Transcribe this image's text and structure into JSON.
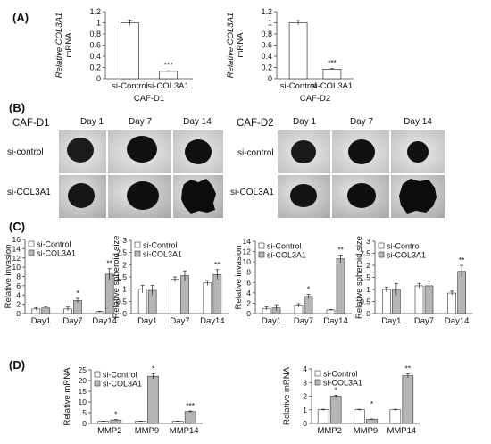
{
  "panels": {
    "A": "(A)",
    "B": "(B)",
    "C": "(C)",
    "D": "(D)"
  },
  "colors": {
    "white_bar": "#ffffff",
    "grey_bar": "#b5b5b5",
    "axis": "#444444",
    "bar_edge": "#333333"
  },
  "spheroid": {
    "left": {
      "title": "CAF-D1",
      "days": [
        "Day 1",
        "Day 7",
        "Day 14"
      ],
      "rows": [
        "si-control",
        "si-COL3A1"
      ]
    },
    "right": {
      "title": "CAF-D2",
      "days": [
        "Day 1",
        "Day 7",
        "Day 14"
      ],
      "rows": [
        "si-control",
        "si-COL3A1"
      ]
    }
  },
  "chart_data": [
    {
      "id": "a1",
      "type": "bar",
      "categories": [
        "si-Control",
        "si-COL3A1"
      ],
      "values": [
        1.0,
        0.13
      ],
      "errors": [
        0.05,
        0.01
      ],
      "ylabel_top": "Relative COL3A1",
      "ylabel_bottom": "mRNA",
      "ylim": [
        0,
        1.2
      ],
      "yticks": [
        0,
        0.2,
        0.4,
        0.6,
        0.8,
        1,
        1.2
      ],
      "xlabel": "CAF-D1",
      "annotations": [
        {
          "category": "si-COL3A1",
          "text": "***"
        }
      ]
    },
    {
      "id": "a2",
      "type": "bar",
      "categories": [
        "si-Control",
        "si-COL3A1"
      ],
      "values": [
        1.0,
        0.17
      ],
      "errors": [
        0.04,
        0.01
      ],
      "ylabel_top": "Relative COL3A1",
      "ylabel_bottom": "mRNA",
      "ylim": [
        0,
        1.2
      ],
      "yticks": [
        0,
        0.2,
        0.4,
        0.6,
        0.8,
        1,
        1.2
      ],
      "xlabel": "CAF-D2",
      "annotations": [
        {
          "category": "si-COL3A1",
          "text": "***"
        }
      ]
    },
    {
      "id": "c1",
      "type": "bar",
      "categories": [
        "Day1",
        "Day7",
        "Day14"
      ],
      "ylabel": "Relative invasion",
      "ylim": [
        0,
        16
      ],
      "yticks": [
        0,
        2,
        4,
        6,
        8,
        10,
        12,
        14,
        16
      ],
      "legend": "top-left",
      "series": [
        {
          "name": "si-Control",
          "values": [
            1.0,
            1.0,
            0.4
          ],
          "errors": [
            0.3,
            0.4,
            0.1
          ]
        },
        {
          "name": "si-COL3A1",
          "values": [
            1.2,
            2.8,
            8.5
          ],
          "errors": [
            0.3,
            0.5,
            1.2
          ]
        }
      ],
      "annotations": [
        {
          "category": "Day7",
          "text": "*"
        },
        {
          "category": "Day14",
          "text": "**"
        }
      ]
    },
    {
      "id": "c2",
      "type": "bar",
      "categories": [
        "Day1",
        "Day7",
        "Day14"
      ],
      "ylabel": "Relative spheroid size",
      "ylim": [
        0,
        3
      ],
      "yticks": [
        0,
        0.5,
        1,
        1.5,
        2,
        2.5,
        3
      ],
      "legend": "top-left",
      "series": [
        {
          "name": "si-Control",
          "values": [
            1.0,
            1.4,
            1.25
          ],
          "errors": [
            0.15,
            0.1,
            0.1
          ]
        },
        {
          "name": "si-COL3A1",
          "values": [
            0.95,
            1.55,
            1.6
          ],
          "errors": [
            0.2,
            0.2,
            0.2
          ]
        }
      ],
      "annotations": [
        {
          "category": "Day14",
          "text": "**"
        }
      ]
    },
    {
      "id": "c3",
      "type": "bar",
      "categories": [
        "Day1",
        "Day7",
        "Day14"
      ],
      "ylabel": "Relative invasion",
      "ylim": [
        0,
        14
      ],
      "yticks": [
        0,
        2,
        4,
        6,
        8,
        10,
        12,
        14
      ],
      "legend": "top-left",
      "series": [
        {
          "name": "si-Control",
          "values": [
            1.0,
            1.6,
            0.7
          ],
          "errors": [
            0.3,
            0.3,
            0.1
          ]
        },
        {
          "name": "si-COL3A1",
          "values": [
            1.1,
            3.3,
            10.6
          ],
          "errors": [
            0.6,
            0.4,
            0.7
          ]
        }
      ],
      "annotations": [
        {
          "category": "Day7",
          "text": "*"
        },
        {
          "category": "Day14",
          "text": "**"
        }
      ]
    },
    {
      "id": "c4",
      "type": "bar",
      "categories": [
        "Day1",
        "Day7",
        "Day14"
      ],
      "ylabel": "Relative spheroid size",
      "ylim": [
        0,
        3
      ],
      "yticks": [
        0,
        0.5,
        1,
        1.5,
        2,
        2.5,
        3
      ],
      "legend": "top-left",
      "series": [
        {
          "name": "si-Control",
          "values": [
            1.0,
            1.15,
            0.85
          ],
          "errors": [
            0.1,
            0.1,
            0.08
          ]
        },
        {
          "name": "si-COL3A1",
          "values": [
            1.0,
            1.15,
            1.75
          ],
          "errors": [
            0.25,
            0.2,
            0.25
          ]
        }
      ],
      "annotations": [
        {
          "category": "Day14",
          "text": "**"
        }
      ]
    },
    {
      "id": "d1",
      "type": "bar",
      "categories": [
        "MMP2",
        "MMP9",
        "MMP14"
      ],
      "ylabel": "Relative mRNA",
      "ylim": [
        0,
        25
      ],
      "yticks": [
        0,
        5,
        10,
        15,
        20,
        25
      ],
      "legend": "top-left",
      "series": [
        {
          "name": "si-Control",
          "values": [
            1.0,
            1.0,
            1.0
          ],
          "errors": [
            0.1,
            0.1,
            0.1
          ]
        },
        {
          "name": "si-COL3A1",
          "values": [
            1.6,
            22.0,
            5.5
          ],
          "errors": [
            0.2,
            1.2,
            0.3
          ]
        }
      ],
      "annotations": [
        {
          "category": "MMP2",
          "text": "*"
        },
        {
          "category": "MMP9",
          "text": "*"
        },
        {
          "category": "MMP14",
          "text": "***"
        }
      ]
    },
    {
      "id": "d2",
      "type": "bar",
      "categories": [
        "MMP2",
        "MMP9",
        "MMP14"
      ],
      "ylabel": "Relative mRNA",
      "ylim": [
        0,
        4
      ],
      "yticks": [
        0,
        1,
        2,
        3,
        4
      ],
      "legend": "top-left",
      "series": [
        {
          "name": "si-Control",
          "values": [
            1.0,
            1.0,
            1.0
          ],
          "errors": [
            0.04,
            0.04,
            0.04
          ]
        },
        {
          "name": "si-COL3A1",
          "values": [
            2.0,
            0.3,
            3.5
          ],
          "errors": [
            0.08,
            0.03,
            0.15
          ]
        }
      ],
      "annotations": [
        {
          "category": "MMP2",
          "text": "*"
        },
        {
          "category": "MMP9",
          "text": "*"
        },
        {
          "category": "MMP14",
          "text": "**"
        }
      ]
    }
  ]
}
